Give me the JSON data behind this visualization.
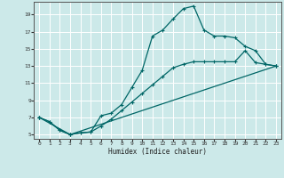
{
  "title": "",
  "xlabel": "Humidex (Indice chaleur)",
  "ylabel": "",
  "bg_color": "#cce9e9",
  "line_color": "#006666",
  "grid_color": "#ffffff",
  "xlim": [
    -0.5,
    23.5
  ],
  "ylim": [
    4.5,
    20.5
  ],
  "xticks": [
    0,
    1,
    2,
    3,
    4,
    5,
    6,
    7,
    8,
    9,
    10,
    11,
    12,
    13,
    14,
    15,
    16,
    17,
    18,
    19,
    20,
    21,
    22,
    23
  ],
  "yticks": [
    5,
    7,
    9,
    11,
    13,
    15,
    17,
    19
  ],
  "lines": [
    {
      "x": [
        0,
        1,
        2,
        3,
        4,
        5,
        6,
        7,
        8,
        9,
        10,
        11,
        12,
        13,
        14,
        15,
        16,
        17,
        18,
        19,
        20,
        21,
        22,
        23
      ],
      "y": [
        7,
        6.5,
        5.5,
        5,
        5.2,
        5.3,
        7.2,
        7.5,
        8.5,
        10.5,
        12.5,
        16.5,
        17.2,
        18.5,
        19.7,
        20.0,
        17.2,
        16.5,
        16.5,
        16.3,
        15.3,
        14.8,
        13.2,
        13.0
      ]
    },
    {
      "x": [
        0,
        1,
        2,
        3,
        4,
        5,
        6,
        7,
        8,
        9,
        10,
        11,
        12,
        13,
        14,
        15,
        16,
        17,
        18,
        19,
        20,
        21,
        22,
        23
      ],
      "y": [
        7,
        6.5,
        5.5,
        5.0,
        5.2,
        5.3,
        6.0,
        6.8,
        7.8,
        8.8,
        9.8,
        10.8,
        11.8,
        12.8,
        13.2,
        13.5,
        13.5,
        13.5,
        13.5,
        13.5,
        14.8,
        13.4,
        13.2,
        13.0
      ]
    },
    {
      "x": [
        0,
        3,
        23
      ],
      "y": [
        7,
        5,
        13
      ]
    }
  ]
}
